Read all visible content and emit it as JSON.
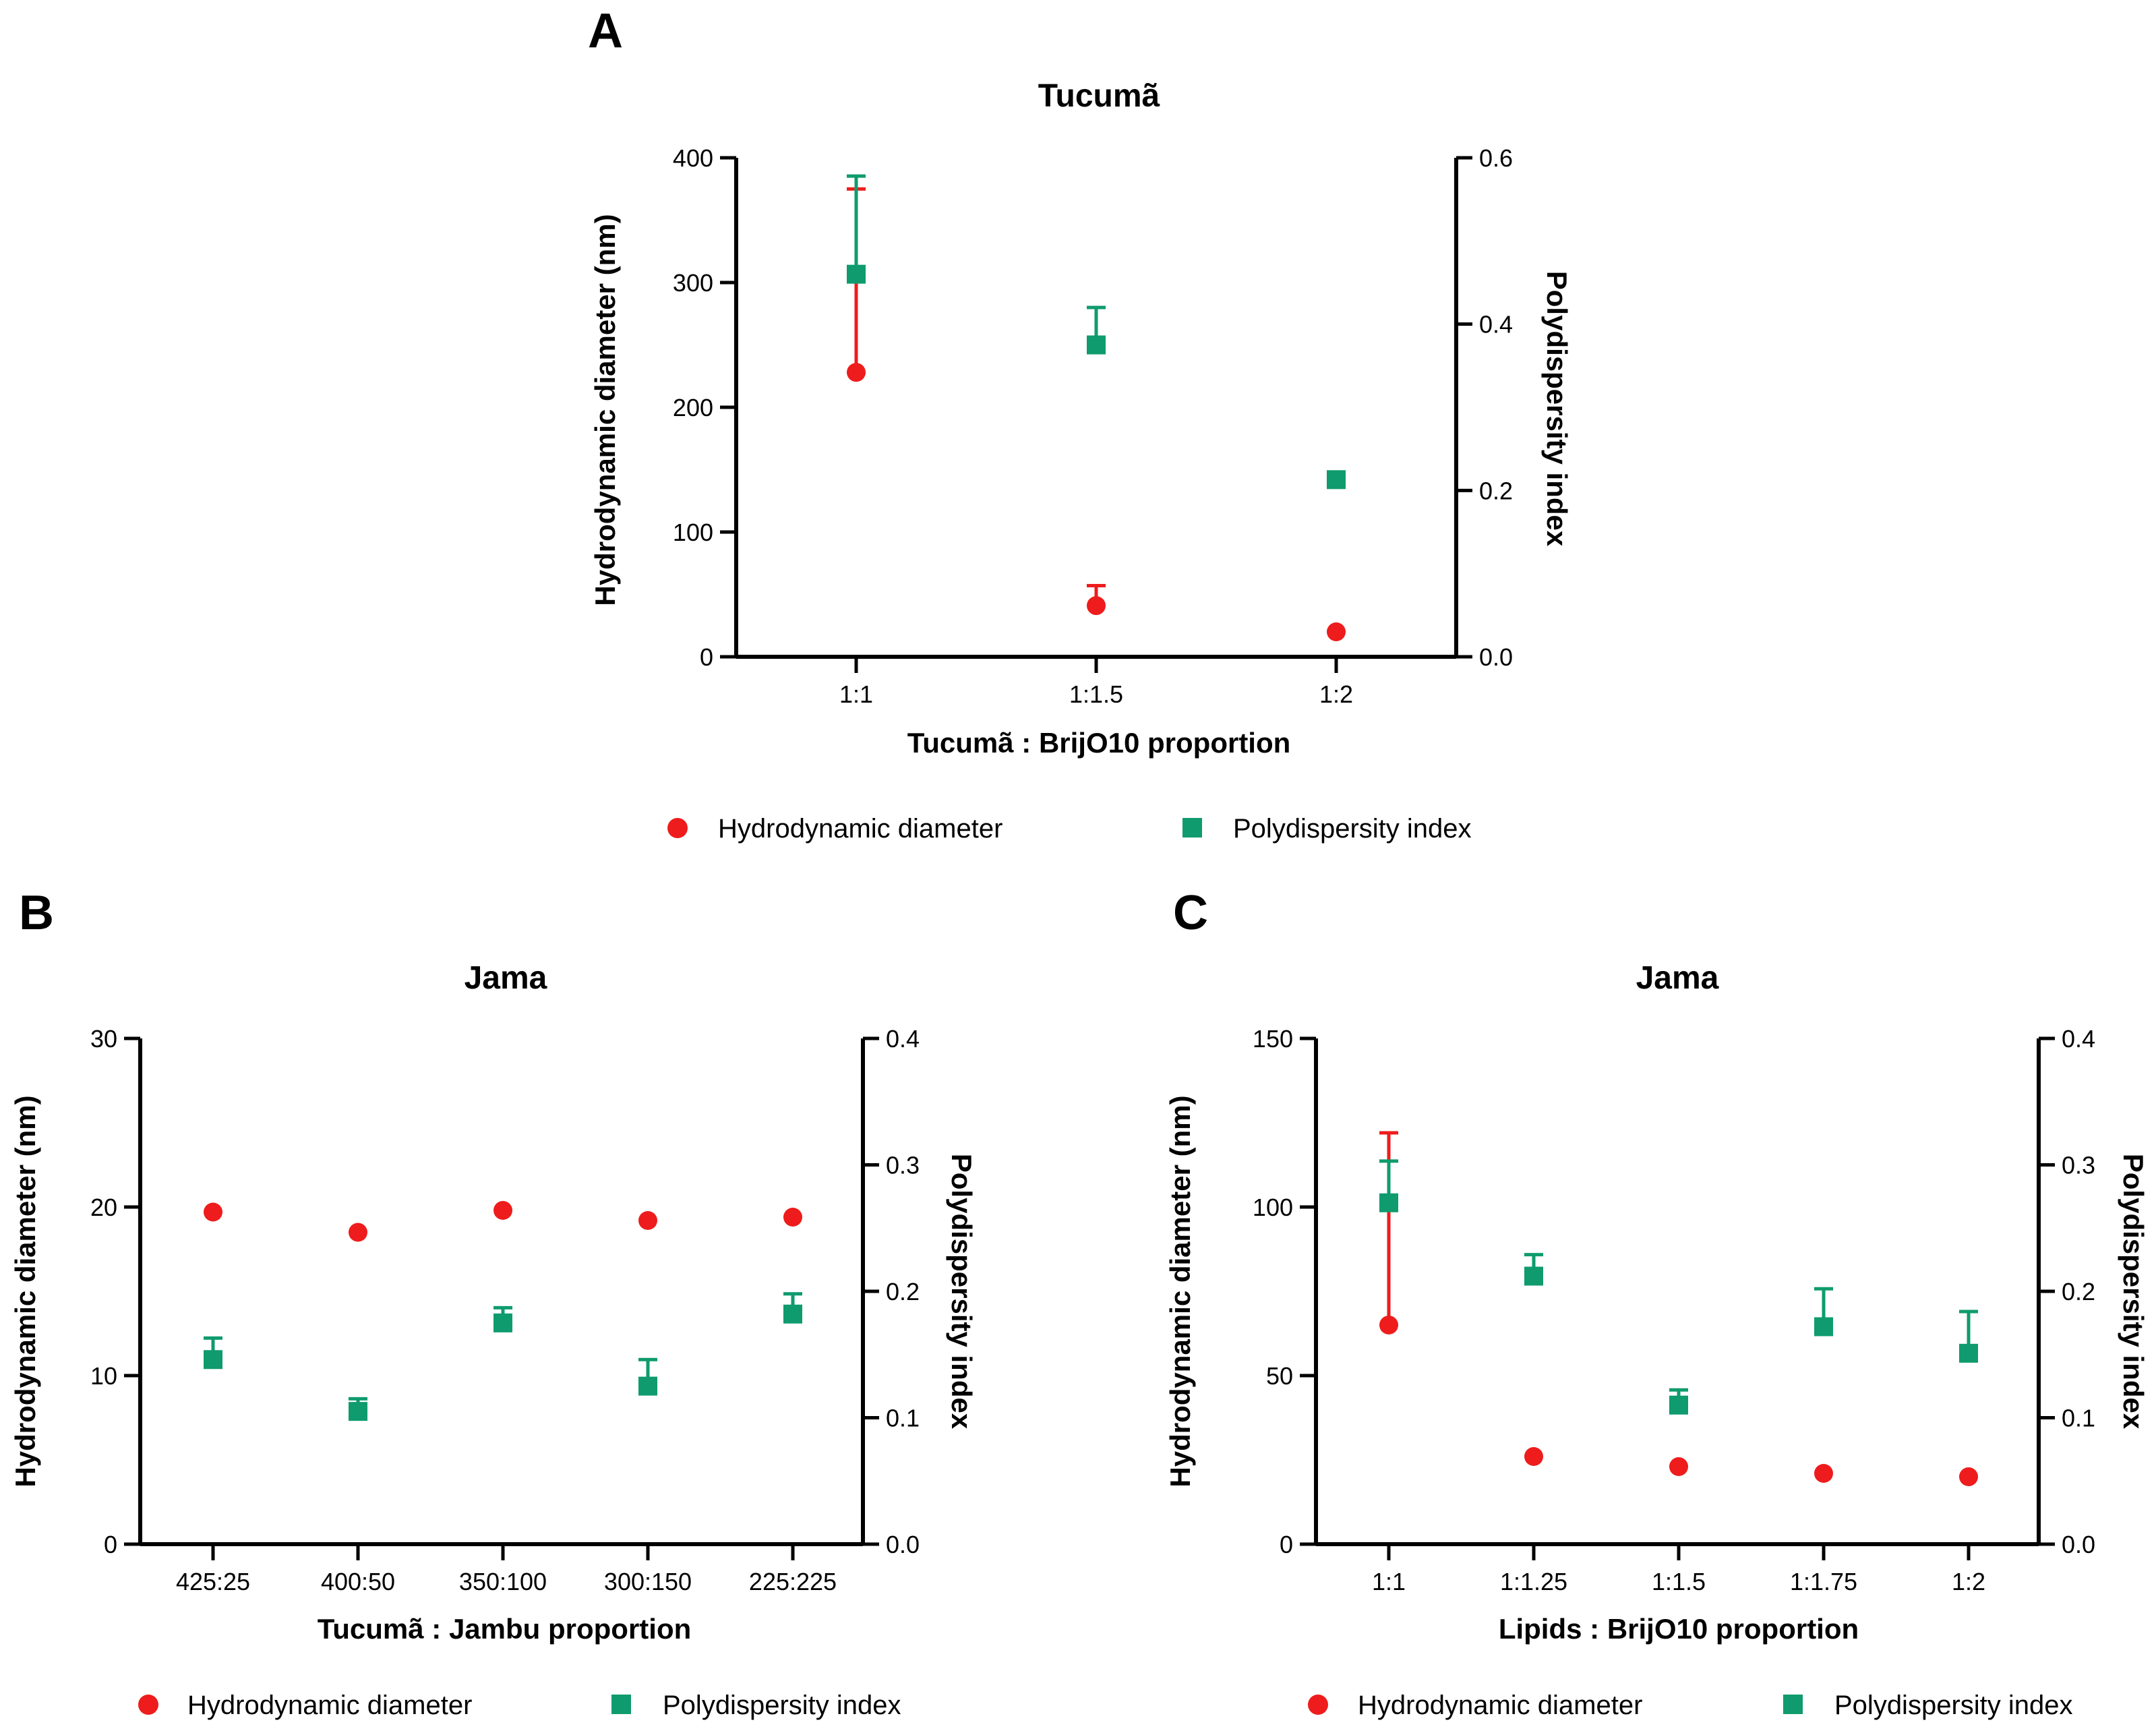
{
  "colors": {
    "hydrodynamic": "#ee1c1c",
    "polydispersity": "#0f9b6e",
    "axis": "#000000"
  },
  "chart_data": [
    {
      "panel": "A",
      "type": "scatter",
      "title": "Tucumã",
      "xlabel": "Tucumã : BrijO10 proportion",
      "ylabel": "Hydrodynamic diameter (nm)",
      "y2label": "Polydispersity index",
      "categories": [
        "1:1",
        "1:1.5",
        "1:2"
      ],
      "ylim": [
        0,
        400
      ],
      "yticks": [
        0,
        100,
        200,
        300,
        400
      ],
      "yticklabels": [
        "0",
        "100",
        "200",
        "300",
        "400"
      ],
      "y2lim": [
        0,
        0.6
      ],
      "y2ticks": [
        0,
        0.2,
        0.4,
        0.6
      ],
      "y2ticklabels": [
        "0.0",
        "0.2",
        "0.4",
        "0.6"
      ],
      "series": [
        {
          "name": "Hydrodynamic diameter",
          "axis": "left",
          "marker": "circle",
          "values": [
            228,
            41,
            20
          ],
          "error": [
            147,
            16,
            0
          ]
        },
        {
          "name": "Polydispersity index",
          "axis": "right",
          "marker": "square",
          "values": [
            0.46,
            0.375,
            0.213
          ],
          "error": [
            0.118,
            0.045,
            0
          ]
        }
      ],
      "legend": {
        "position": "bottom",
        "labels": [
          "Hydrodynamic diameter",
          "Polydispersity index"
        ]
      }
    },
    {
      "panel": "B",
      "type": "scatter",
      "title": "Jama",
      "xlabel": "Tucumã : Jambu proportion",
      "ylabel": "Hydrodynamic diameter (nm)",
      "y2label": "Polydispersity index",
      "categories": [
        "425:25",
        "400:50",
        "350:100",
        "300:150",
        "225:225"
      ],
      "ylim": [
        0,
        30
      ],
      "yticks": [
        0,
        10,
        20,
        30
      ],
      "yticklabels": [
        "0",
        "10",
        "20",
        "30"
      ],
      "y2lim": [
        0,
        0.4
      ],
      "y2ticks": [
        0,
        0.1,
        0.2,
        0.3,
        0.4
      ],
      "y2ticklabels": [
        "0.0",
        "0.1",
        "0.2",
        "0.3",
        "0.4"
      ],
      "series": [
        {
          "name": "Hydrodynamic diameter",
          "axis": "left",
          "marker": "circle",
          "values": [
            19.7,
            18.5,
            19.8,
            19.2,
            19.4
          ],
          "error": [
            0,
            0,
            0,
            0,
            0
          ]
        },
        {
          "name": "Polydispersity index",
          "axis": "right",
          "marker": "square",
          "values": [
            0.146,
            0.105,
            0.175,
            0.125,
            0.182
          ],
          "error": [
            0.017,
            0.01,
            0.012,
            0.021,
            0.016
          ]
        }
      ],
      "legend": {
        "position": "bottom",
        "labels": [
          "Hydrodynamic diameter",
          "Polydispersity index"
        ]
      }
    },
    {
      "panel": "C",
      "type": "scatter",
      "title": "Jama",
      "xlabel": "Lipids : BrijO10 proportion",
      "ylabel": "Hydrodynamic diameter (nm)",
      "y2label": "Polydispersity index",
      "categories": [
        "1:1",
        "1:1.25",
        "1:1.5",
        "1:1.75",
        "1:2"
      ],
      "ylim": [
        0,
        150
      ],
      "yticks": [
        0,
        50,
        100,
        150
      ],
      "yticklabels": [
        "0",
        "50",
        "100",
        "150"
      ],
      "y2lim": [
        0,
        0.4
      ],
      "y2ticks": [
        0,
        0.1,
        0.2,
        0.3,
        0.4
      ],
      "y2ticklabels": [
        "0.0",
        "0.1",
        "0.2",
        "0.3",
        "0.4"
      ],
      "series": [
        {
          "name": "Hydrodynamic diameter",
          "axis": "left",
          "marker": "circle",
          "values": [
            65,
            26,
            23,
            21,
            20
          ],
          "error": [
            57,
            0,
            0,
            0,
            0
          ]
        },
        {
          "name": "Polydispersity index",
          "axis": "right",
          "marker": "square",
          "values": [
            0.27,
            0.212,
            0.11,
            0.172,
            0.151
          ],
          "error": [
            0.033,
            0.017,
            0.012,
            0.03,
            0.033
          ]
        }
      ],
      "legend": {
        "position": "bottom",
        "labels": [
          "Hydrodynamic diameter",
          "Polydispersity index"
        ]
      }
    }
  ]
}
